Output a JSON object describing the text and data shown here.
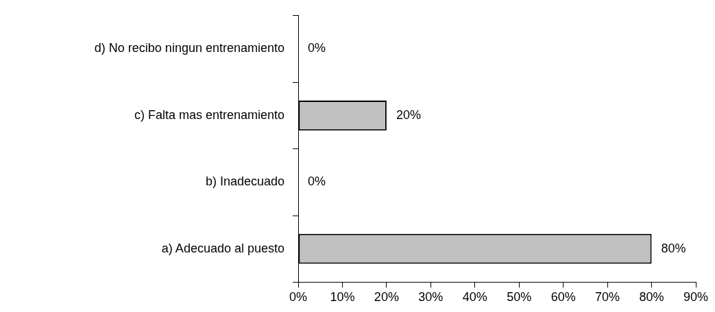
{
  "chart_data": {
    "type": "bar",
    "orientation": "horizontal",
    "categories": [
      "d) No recibo ningun entrenamiento",
      "c) Falta mas entrenamiento",
      "b) Inadecuado",
      "a) Adecuado al puesto"
    ],
    "values": [
      0,
      20,
      0,
      80
    ],
    "color": "#c0c0c0",
    "value_labels": [
      "0%",
      "20%",
      "0%",
      "80%"
    ],
    "xlim": [
      0,
      90
    ],
    "xticks": [
      {
        "value": 0,
        "label": "0%"
      },
      {
        "value": 10,
        "label": "10%"
      },
      {
        "value": 20,
        "label": "20%"
      },
      {
        "value": 30,
        "label": "30%"
      },
      {
        "value": 40,
        "label": "40%"
      },
      {
        "value": 50,
        "label": "50%"
      },
      {
        "value": 60,
        "label": "60%"
      },
      {
        "value": 70,
        "label": "70%"
      },
      {
        "value": 80,
        "label": "80%"
      },
      {
        "value": 90,
        "label": "90%"
      }
    ],
    "grid": false,
    "legend": false
  }
}
